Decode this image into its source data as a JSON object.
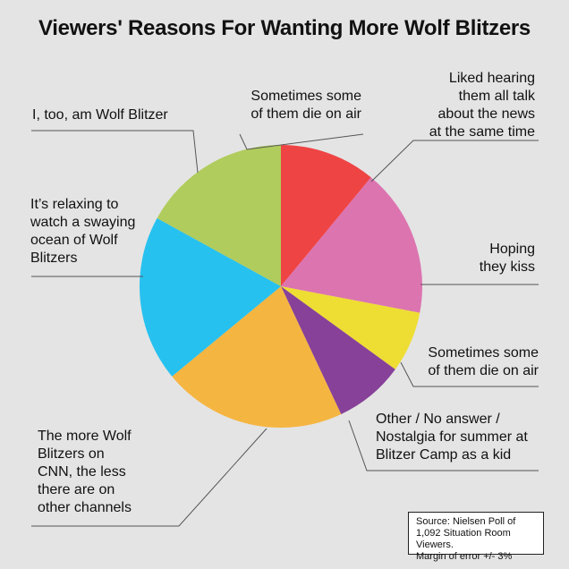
{
  "chart_data": {
    "type": "pie",
    "title": "Viewers' Reasons For Wanting More Wolf Blitzers",
    "slices": [
      {
        "label": "Sometimes some\nof them die on air",
        "value": 11,
        "color": "#ef4444"
      },
      {
        "label": "Liked hearing\nthem all talk\nabout the news\nat the same time",
        "value": 0,
        "color": "#ef4444"
      },
      {
        "label": "Hoping\nthey kiss",
        "value": 17,
        "color": "#dc74b0"
      },
      {
        "label": "Sometimes some\nof them die on air",
        "value": 7,
        "color": "#eedd33"
      },
      {
        "label": "Other / No answer /\nNostalgia for summer at\nBlitzer Camp as a kid",
        "value": 8,
        "color": "#874199"
      },
      {
        "label": "The more Wolf\nBlitzers on\nCNN, the less\nthere are on\nother channels",
        "value": 21,
        "color": "#f5b541"
      },
      {
        "label": "It’s relaxing to\nwatch a swaying\nocean of Wolf\nBlitzers",
        "value": 19,
        "color": "#27c1ef"
      },
      {
        "label": "I, too, am Wolf Blitzer",
        "value": 17,
        "color": "#b0cc5c"
      }
    ],
    "note": "Source: Nielsen Poll of\n1,092 Situation Room Viewers.\nMargin of error +/- 3%"
  }
}
